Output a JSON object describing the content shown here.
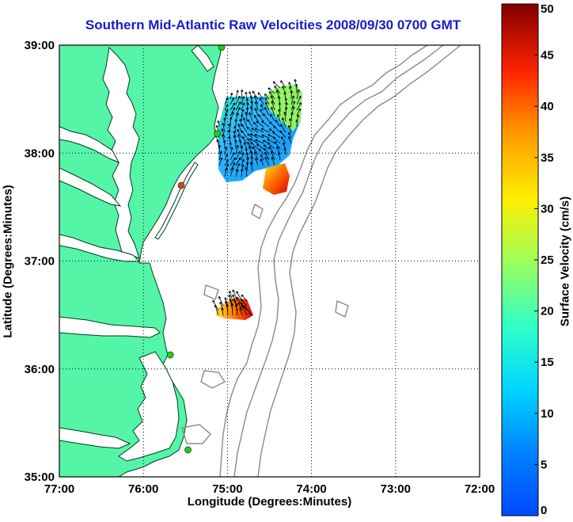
{
  "title": "Southern Mid-Atlantic Raw Velocities 2008/09/30 0700 GMT",
  "xlabel": "Longitude (Degrees:Minutes)",
  "ylabel": "Latitude (Degrees:Minutes)",
  "colorbar": {
    "label": "Surface Velocity (cm/s)",
    "ticks": [
      "0",
      "5",
      "10",
      "15",
      "20",
      "25",
      "30",
      "35",
      "40",
      "45",
      "50"
    ],
    "min": 0,
    "max": 50,
    "colormap": "jet"
  },
  "x_ticks": [
    "77:00",
    "76:00",
    "75:00",
    "74:00",
    "73:00",
    "72:00"
  ],
  "y_ticks": [
    "39:00",
    "38:00",
    "37:00",
    "36:00",
    "35:00"
  ],
  "colors": {
    "land": "#55f5a8",
    "title": "#1a1acc",
    "bathymetry": "#8a8a8a",
    "station_active": "#22cc22",
    "station_alert": "#e63b1e"
  },
  "stations": [
    {
      "lon": -75.07,
      "lat": 38.98,
      "status": "active"
    },
    {
      "lon": -75.12,
      "lat": 38.18,
      "status": "active"
    },
    {
      "lon": -75.55,
      "lat": 37.7,
      "status": "alert"
    },
    {
      "lon": -75.68,
      "lat": 36.13,
      "status": "active"
    },
    {
      "lon": -75.47,
      "lat": 35.25,
      "status": "active"
    }
  ]
}
